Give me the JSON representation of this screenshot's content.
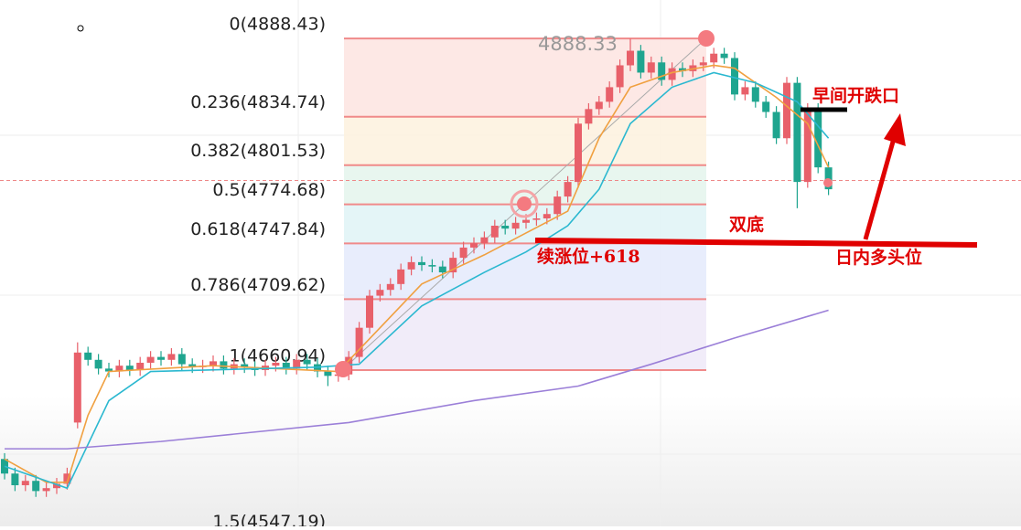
{
  "chart_data": {
    "type": "candlestick",
    "ylim": [
      4553.8,
      4914.8
    ],
    "open": [
      4600,
      4590,
      4582,
      4585,
      4578,
      4580,
      4583,
      4625,
      4673,
      4668,
      4662,
      4660,
      4664,
      4661,
      4666,
      4670,
      4668,
      4672,
      4665,
      4663,
      4664,
      4667,
      4662,
      4665,
      4663,
      4661,
      4664,
      4666,
      4662,
      4668,
      4665,
      4660,
      4657,
      4658,
      4670,
      4690,
      4712,
      4716,
      4720,
      4730,
      4735,
      4733,
      4732,
      4728,
      4738,
      4745,
      4748,
      4752,
      4760,
      4758,
      4762,
      4764,
      4765,
      4768,
      4780,
      4790,
      4830,
      4840,
      4845,
      4855,
      4870,
      4880,
      4865,
      4872,
      4860,
      4868,
      4866,
      4870,
      4872,
      4878,
      4875,
      4850,
      4855,
      4845,
      4838,
      4820,
      4858,
      4790,
      4840,
      4800
    ],
    "high": [
      4604,
      4594,
      4589,
      4589,
      4584,
      4587,
      4594,
      4680,
      4677,
      4672,
      4666,
      4668,
      4668,
      4670,
      4674,
      4674,
      4676,
      4676,
      4669,
      4668,
      4671,
      4671,
      4669,
      4669,
      4667,
      4668,
      4670,
      4670,
      4672,
      4672,
      4669,
      4664,
      4662,
      4674,
      4694,
      4716,
      4720,
      4724,
      4734,
      4739,
      4739,
      4737,
      4736,
      4742,
      4749,
      4752,
      4756,
      4764,
      4764,
      4766,
      4768,
      4769,
      4772,
      4784,
      4794,
      4834,
      4844,
      4849,
      4859,
      4874,
      4888.3,
      4884,
      4876,
      4876,
      4872,
      4872,
      4874,
      4876,
      4882,
      4882,
      4879,
      4859,
      4859,
      4849,
      4842,
      4862,
      4862,
      4844,
      4844,
      4804
    ],
    "low": [
      4586,
      4578,
      4578,
      4574,
      4574,
      4576,
      4579,
      4621,
      4664,
      4658,
      4656,
      4656,
      4657,
      4657,
      4662,
      4664,
      4664,
      4661,
      4659,
      4659,
      4660,
      4658,
      4658,
      4659,
      4657,
      4657,
      4660,
      4658,
      4658,
      4661,
      4656,
      4650,
      4653,
      4654,
      4666,
      4686,
      4708,
      4712,
      4716,
      4726,
      4729,
      4728,
      4724,
      4724,
      4734,
      4741,
      4744,
      4748,
      4754,
      4754,
      4758,
      4760,
      4761,
      4764,
      4776,
      4786,
      4826,
      4836,
      4841,
      4851,
      4866,
      4861,
      4861,
      4856,
      4856,
      4862,
      4862,
      4866,
      4868,
      4871,
      4846,
      4846,
      4841,
      4834,
      4816,
      4816,
      4772,
      4786,
      4796,
      4781
    ],
    "close": [
      4590,
      4582,
      4585,
      4578,
      4580,
      4583,
      4590,
      4673,
      4668,
      4662,
      4660,
      4664,
      4661,
      4666,
      4670,
      4668,
      4672,
      4665,
      4663,
      4664,
      4667,
      4662,
      4665,
      4663,
      4661,
      4664,
      4666,
      4662,
      4668,
      4665,
      4660,
      4657,
      4658,
      4670,
      4690,
      4712,
      4716,
      4720,
      4730,
      4735,
      4733,
      4732,
      4728,
      4738,
      4745,
      4748,
      4752,
      4760,
      4758,
      4762,
      4764,
      4765,
      4768,
      4780,
      4790,
      4830,
      4840,
      4845,
      4855,
      4870,
      4880,
      4865,
      4872,
      4860,
      4868,
      4866,
      4870,
      4872,
      4878,
      4875,
      4850,
      4855,
      4845,
      4838,
      4820,
      4858,
      4790,
      4840,
      4800,
      4785
    ],
    "up_color": "#e8606a",
    "down_color": "#1fa58f",
    "lines": [
      {
        "color": "#f0a040",
        "x": [
          0,
          4,
          6,
          8,
          10,
          20,
          32,
          36,
          40,
          46,
          50,
          54,
          57,
          60,
          64,
          68,
          70,
          74,
          77,
          79
        ],
        "values": [
          4600,
          4584,
          4584,
          4630,
          4660,
          4664,
          4660,
          4690,
          4720,
          4740,
          4755,
          4770,
          4820,
          4855,
          4865,
          4870,
          4868,
          4848,
          4830,
          4800
        ]
      },
      {
        "color": "#2bb8d0",
        "x": [
          0,
          6,
          10,
          14,
          30,
          34,
          40,
          46,
          50,
          54,
          57,
          60,
          64,
          68,
          72,
          76,
          79
        ],
        "values": [
          4595,
          4580,
          4640,
          4660,
          4663,
          4665,
          4705,
          4728,
          4742,
          4760,
          4785,
          4830,
          4855,
          4865,
          4858,
          4845,
          4820
        ]
      },
      {
        "color": "#9b7fd8",
        "x": [
          0,
          6,
          15,
          33,
          45,
          55,
          62,
          70,
          79
        ],
        "values": [
          4607,
          4607,
          4612,
          4625,
          4640,
          4650,
          4665,
          4683,
          4702
        ]
      }
    ],
    "fib_levels": [
      {
        "value": 4888.43,
        "label": "0(4888.43)"
      },
      {
        "value": 4834.74,
        "label": "0.236(4834.74)"
      },
      {
        "value": 4801.53,
        "label": "0.382(4801.53)"
      },
      {
        "value": 4774.68,
        "label": "0.5(4774.68)"
      },
      {
        "value": 4747.84,
        "label": "0.618(4747.84)"
      },
      {
        "value": 4709.62,
        "label": "0.786(4709.62)"
      },
      {
        "value": 4660.94,
        "label": "1(4660.94)"
      },
      {
        "value": 4547.19,
        "label": "1.5(4547.19)"
      }
    ],
    "fib_band_colors": [
      "#fde4e1",
      "#fdf1de",
      "#e4f5ec",
      "#dff3f6",
      "#e4eafb",
      "#efe9f8"
    ],
    "fib_line_color": "#f08a8a",
    "high_label": 4888.33,
    "price_line": 4791,
    "annotations": [
      "早间开跌口",
      "双底",
      "续涨位+618",
      "日内多头位"
    ]
  }
}
